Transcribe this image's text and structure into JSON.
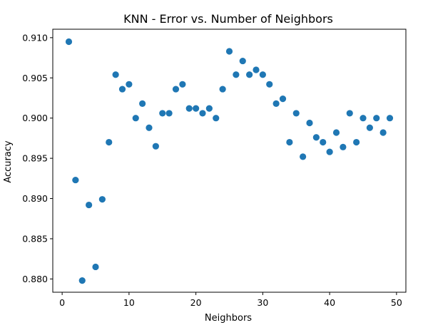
{
  "chart_data": {
    "type": "scatter",
    "title": "KNN - Error vs. Number of Neighbors",
    "xlabel": "Neighbors",
    "ylabel": "Accuracy",
    "xlim": [
      -1.4,
      51.4
    ],
    "ylim": [
      0.87835,
      0.91105
    ],
    "xticks": [
      0,
      10,
      20,
      30,
      40,
      50
    ],
    "xtick_labels": [
      "0",
      "10",
      "20",
      "30",
      "40",
      "50"
    ],
    "yticks": [
      0.88,
      0.885,
      0.89,
      0.895,
      0.9,
      0.905,
      0.91
    ],
    "ytick_labels": [
      "0.880",
      "0.885",
      "0.890",
      "0.895",
      "0.900",
      "0.905",
      "0.910"
    ],
    "grid": false,
    "legend": "none",
    "marker_color": "#1f77b4",
    "series": [
      {
        "x": [
          1,
          2,
          3,
          4,
          5,
          6,
          7,
          8,
          9,
          10,
          11,
          12,
          13,
          14,
          15,
          16,
          17,
          18,
          19,
          20,
          21,
          22,
          23,
          24,
          25,
          26,
          27,
          28,
          29,
          30,
          31,
          32,
          33,
          34,
          35,
          36,
          37,
          38,
          39,
          40,
          41,
          42,
          43,
          44,
          45,
          46,
          47,
          48,
          49
        ],
        "values": [
          0.9095,
          0.8923,
          0.8798,
          0.8892,
          0.8815,
          0.8899,
          0.897,
          0.9054,
          0.9036,
          0.9042,
          0.9,
          0.9018,
          0.8988,
          0.8965,
          0.9006,
          0.9006,
          0.9036,
          0.9042,
          0.9012,
          0.9012,
          0.9006,
          0.9012,
          0.9,
          0.9036,
          0.9083,
          0.9054,
          0.9071,
          0.9054,
          0.906,
          0.9054,
          0.9042,
          0.9018,
          0.9024,
          0.897,
          0.9006,
          0.8952,
          0.8994,
          0.8976,
          0.897,
          0.8958,
          0.8982,
          0.8964,
          0.9006,
          0.897,
          0.9,
          0.8988,
          0.9,
          0.8982,
          0.9
        ]
      }
    ]
  }
}
